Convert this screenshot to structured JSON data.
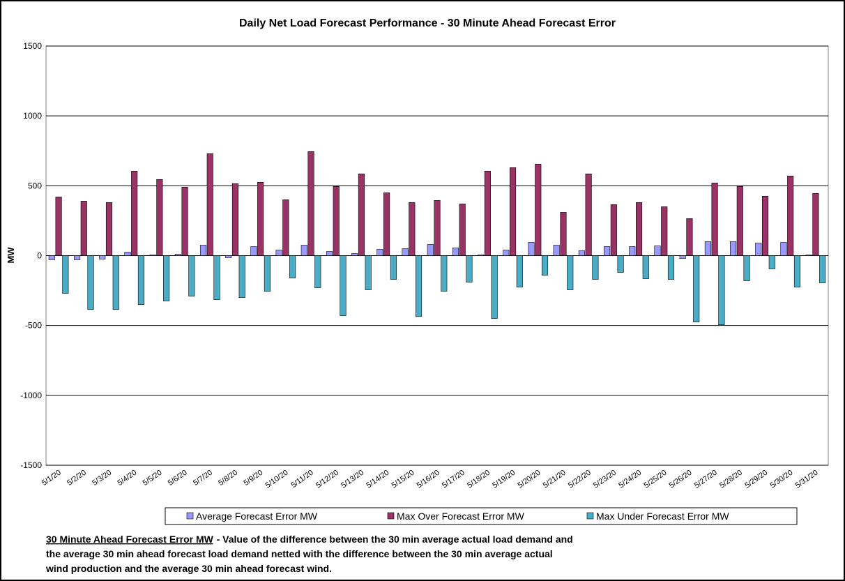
{
  "chart_data": {
    "type": "bar",
    "title": "Daily Net Load Forecast Performance - 30 Minute Ahead Forecast Error",
    "y_label": "MW",
    "categories": [
      "5/1/20",
      "5/2/20",
      "5/3/20",
      "5/4/20",
      "5/5/20",
      "5/6/20",
      "5/7/20",
      "5/8/20",
      "5/9/20",
      "5/10/20",
      "5/11/20",
      "5/12/20",
      "5/13/20",
      "5/14/20",
      "5/15/20",
      "5/16/20",
      "5/17/20",
      "5/18/20",
      "5/19/20",
      "5/20/20",
      "5/21/20",
      "5/22/20",
      "5/23/20",
      "5/24/20",
      "5/25/20",
      "5/26/20",
      "5/27/20",
      "5/28/20",
      "5/29/20",
      "5/30/20",
      "5/31/20"
    ],
    "series": [
      {
        "name": "Average Forecast Error MW",
        "color": "#9999ff",
        "values": [
          -30,
          -30,
          -25,
          25,
          5,
          10,
          75,
          -15,
          65,
          40,
          75,
          30,
          15,
          45,
          50,
          80,
          55,
          5,
          40,
          95,
          75,
          35,
          65,
          65,
          70,
          -20,
          100,
          100,
          90,
          95,
          5
        ]
      },
      {
        "name": "Max Over Forecast Error MW",
        "color": "#993366",
        "values": [
          420,
          390,
          380,
          605,
          545,
          490,
          730,
          515,
          525,
          400,
          745,
          495,
          585,
          450,
          380,
          395,
          370,
          605,
          630,
          655,
          310,
          585,
          365,
          380,
          350,
          265,
          520,
          495,
          425,
          570,
          445
        ]
      },
      {
        "name": "Max Under Forecast Error MW",
        "color": "#4bacc6",
        "values": [
          -270,
          -385,
          -385,
          -350,
          -325,
          -290,
          -315,
          -300,
          -255,
          -160,
          -230,
          -430,
          -245,
          -170,
          -435,
          -255,
          -190,
          -450,
          -225,
          -140,
          -245,
          -170,
          -120,
          -165,
          -170,
          -475,
          -495,
          -180,
          -95,
          -225,
          -195
        ]
      }
    ],
    "ylim": [
      -1500,
      1500
    ],
    "yticks": [
      -1500,
      -1000,
      -500,
      0,
      500,
      1000,
      1500
    ],
    "grid": true,
    "legend": "bottom",
    "note": {
      "label": "30 Minute Ahead Forecast Error MW",
      "lines": [
        "- Value of the difference between the 30 min average actual load demand and",
        "the average 30 min ahead forecast load demand netted with the difference between the 30 min average actual",
        "wind production and the average 30 min ahead forecast wind."
      ]
    }
  }
}
